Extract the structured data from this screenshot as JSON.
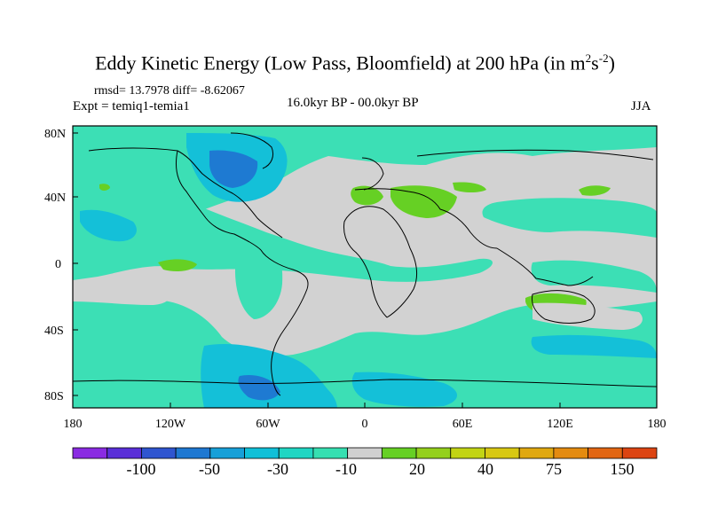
{
  "header": {
    "title_main": "Eddy Kinetic Energy (Low Pass, Bloomfield) at 200 hPa (in m",
    "title_sup1": "2",
    "title_mid": "s",
    "title_sup2": "-2",
    "title_end": ")",
    "rmsd_line": "rmsd= 13.7978 diff= -8.62067",
    "expt_line": "Expt = temiq1-temia1",
    "period": "16.0kyr BP - 00.0kyr BP",
    "season": "JJA"
  },
  "axes": {
    "y_ticks": [
      "80N",
      "40N",
      "0",
      "40S",
      "80S"
    ],
    "x_ticks": [
      "180",
      "120W",
      "60W",
      "0",
      "60E",
      "120E",
      "180"
    ]
  },
  "colorbar": {
    "colors": [
      "#8a2be2",
      "#5a2fd8",
      "#2f55d0",
      "#1e78d2",
      "#17a0d8",
      "#10c0d8",
      "#20d6c3",
      "#36dfb1",
      "#d0d0d0",
      "#66d024",
      "#94d01c",
      "#c2d414",
      "#d8c812",
      "#e0a810",
      "#e48b10",
      "#e26612",
      "#dc4412"
    ],
    "labels": [
      "-100",
      "-50",
      "-30",
      "-10",
      "20",
      "40",
      "75",
      "150"
    ]
  },
  "chart_data": {
    "type": "contour-map",
    "title": "Eddy Kinetic Energy (Low Pass, Bloomfield) at 200 hPa (in m2s-2)",
    "stats": {
      "rmsd": 13.7978,
      "diff": -8.62067
    },
    "experiment": "temiq1-temia1",
    "period": "16.0kyr BP - 00.0kyr BP",
    "season": "JJA",
    "x_range_deg": [
      -180,
      180
    ],
    "y_range_deg": [
      -90,
      90
    ],
    "color_levels": [
      -100,
      -50,
      -30,
      -10,
      20,
      40,
      75,
      150
    ]
  }
}
